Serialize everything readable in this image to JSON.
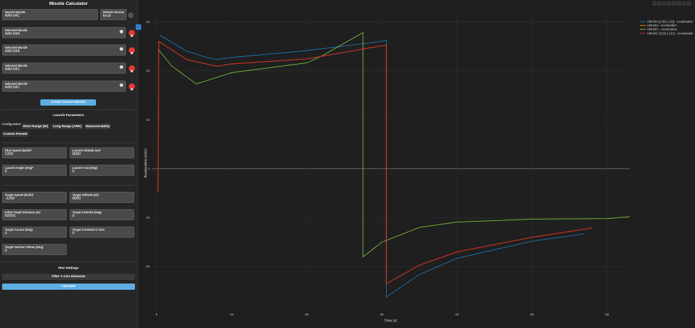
{
  "sidebar": {
    "title": "Missile Calculator",
    "search": {
      "label": "Search Missile",
      "value": "AIM-54C"
    },
    "version": {
      "label": "Default Version",
      "value": "local"
    },
    "selected": [
      {
        "label": "Selected Missile",
        "value": "AIM-54A"
      },
      {
        "label": "Selected Missile",
        "value": "AIM-54A"
      },
      {
        "label": "Selected Missile",
        "value": "AIM-54C"
      },
      {
        "label": "Selected Missile",
        "value": "AIM-54C"
      }
    ],
    "create_button": "Create Custom Missile",
    "launch_title": "Launch Parameters",
    "config_label": "Configuration",
    "presets": [
      "Short Range (IR)",
      "Long Range (ARH)",
      "Maneuverability",
      "Custom Presets"
    ],
    "fields": [
      {
        "label": "Shot Speed (km/h)*",
        "value": 1200
      },
      {
        "label": "Launch Altitude (m)*",
        "value": 8000
      },
      {
        "label": "Launch Angle (Deg)*",
        "value": 0
      },
      {
        "label": "Launch Yaw (Deg)",
        "value": 0
      },
      {
        "label": "Target Speed (km/h)*",
        "value": -1200
      },
      {
        "label": "Target Altitude (m)*",
        "value": 8000
      },
      {
        "label": "Initial Target Distance (m)",
        "value": 60000
      },
      {
        "label": "Target Azimuth (Deg)",
        "value": 0
      },
      {
        "label": "Target Course (Deg)",
        "value": 0
      },
      {
        "label": "Target Constant G Turn",
        "value": 0
      },
      {
        "label": "Target Vertical Climax (Deg)",
        "value": 0
      }
    ],
    "plot_title": "Plot Settings",
    "filter_button": "Filter Y-Axis Elements",
    "calculate_button": "Calculate"
  },
  "chart_data": {
    "type": "line",
    "x_label": "Time (s)",
    "y_label": "Acceleration (m/s²)",
    "xlim": [
      -0.65,
      63
    ],
    "ylim": [
      -29.4,
      31.6
    ],
    "xticks": [
      0,
      10,
      20,
      30,
      40,
      50,
      60
    ],
    "yticks": [
      -20,
      -10,
      0,
      10,
      20,
      30
    ],
    "grid": true,
    "legend": "top-right",
    "series": [
      {
        "name": "AIM-54A [2.55.1.121] - Acceleration",
        "color": "#1f77b4",
        "x": [
          0.4,
          4,
          6.7,
          8,
          10,
          20,
          30,
          30.6,
          30.6,
          35,
          40,
          50,
          57
        ],
        "values": [
          27.3,
          24.0,
          22.7,
          22.3,
          22.7,
          24.1,
          26.0,
          26.2,
          -26.2,
          -21.6,
          -18.3,
          -14.8,
          -13.3
        ]
      },
      {
        "name": "AIM-54A - Acceleration",
        "color": "#ff7f0e",
        "x": [
          0.2,
          0.3,
          4,
          8,
          10,
          20,
          30,
          30.6,
          30.6,
          35,
          40,
          50,
          58
        ],
        "values": [
          -4.8,
          26.0,
          22.3,
          20.9,
          21.4,
          22.4,
          25.1,
          25.2,
          -23.5,
          -19.7,
          -17.0,
          -14.0,
          -12.1
        ]
      },
      {
        "name": "AIM-54C - Acceleration",
        "color": "#7cc53f",
        "x": [
          0.2,
          2,
          5.3,
          10,
          20,
          22,
          27.5,
          27.5,
          30,
          35,
          40,
          50,
          60,
          63
        ],
        "values": [
          24.4,
          21.0,
          17.3,
          19.6,
          21.6,
          23.0,
          27.8,
          -18.0,
          -15.0,
          -12.0,
          -10.9,
          -10.3,
          -10.2,
          -9.8
        ]
      },
      {
        "name": "AIM-54C [2.55.1.121] - Acceleration",
        "color": "#d62728",
        "x": [
          0.2,
          0.3,
          4,
          8,
          10,
          20,
          30,
          30.6,
          30.6,
          35,
          40,
          50,
          58
        ],
        "values": [
          -4.8,
          26.0,
          22.3,
          20.9,
          21.4,
          22.4,
          25.1,
          25.2,
          -23.5,
          -19.7,
          -17.0,
          -14.0,
          -12.1
        ]
      }
    ]
  }
}
